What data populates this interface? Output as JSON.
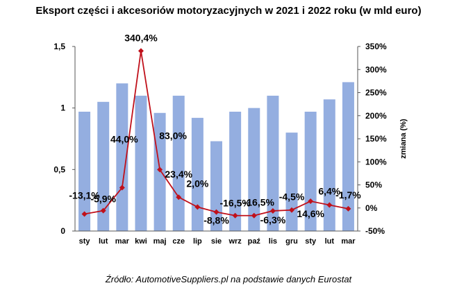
{
  "chart_data": {
    "type": "bar",
    "title": "Eksport części i akcesoriów motoryzacyjnych w 2021 i 2022 roku (w mld euro)",
    "categories": [
      "sty",
      "lut",
      "mar",
      "kwi",
      "maj",
      "cze",
      "lip",
      "sie",
      "wrz",
      "paź",
      "lis",
      "gru",
      "sty",
      "lut",
      "mar"
    ],
    "series": [
      {
        "type": "bar",
        "values": [
          0.97,
          1.05,
          1.2,
          1.1,
          0.96,
          1.1,
          0.92,
          0.73,
          0.97,
          1.0,
          1.1,
          0.8,
          0.97,
          1.07,
          1.21
        ]
      },
      {
        "type": "line",
        "axis": "right",
        "values": [
          -13.1,
          -5.9,
          44.0,
          340.4,
          83.0,
          23.4,
          2.0,
          -8.8,
          -16.5,
          -16.5,
          -6.3,
          -4.5,
          14.6,
          6.4,
          -1.7
        ],
        "labels": [
          "-13,1%",
          "-5,9%",
          "44,0%",
          "340,4%",
          "83,0%",
          "23,4%",
          "2,0%",
          "-8,8%",
          "-16,5%",
          "-16,5%",
          "-6,3%",
          "-4,5%",
          "14,6%",
          "6,4%",
          "-1,7%"
        ]
      }
    ],
    "ylim": [
      0,
      1.5
    ],
    "yticks": [
      "0",
      "0,5",
      "1",
      "1,5"
    ],
    "y2lim": [
      -50,
      350
    ],
    "y2ticks": [
      "-50%",
      "0%",
      "50%",
      "100%",
      "150%",
      "200%",
      "250%",
      "300%",
      "350%"
    ],
    "y2label": "zmiana (%)",
    "grid": false,
    "colors": {
      "bar": "#94aee0",
      "line": "#c0101a"
    }
  },
  "source_text": "Źródło: AutomotiveSuppliers.pl na podstawie danych Eurostat"
}
